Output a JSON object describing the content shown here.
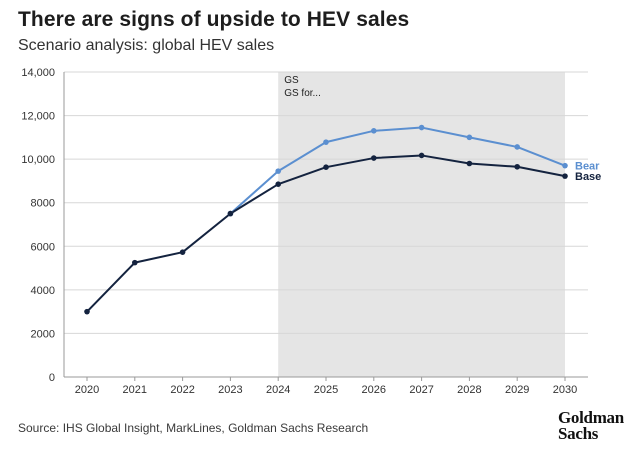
{
  "title": "There are signs of upside to HEV sales",
  "subtitle": "Scenario analysis: global HEV sales",
  "source": "Source: IHS Global Insight, MarkLines, Goldman Sachs Research",
  "logo": {
    "line1": "Goldman",
    "line2": "Sachs"
  },
  "colors": {
    "bear": "#5b8fd0",
    "base": "#14233f",
    "shade": "#e5e5e5",
    "grid": "#d7d7d7",
    "axis": "#999999"
  },
  "chart_data": {
    "type": "line",
    "x": [
      2020,
      2021,
      2022,
      2023,
      2024,
      2025,
      2026,
      2027,
      2028,
      2029,
      2030
    ],
    "ylim": [
      0,
      14000
    ],
    "yticks": [
      0,
      2000,
      4000,
      6000,
      8000,
      10000,
      12000,
      14000
    ],
    "ytick_labels": [
      "0",
      "2000",
      "4000",
      "6000",
      "8000",
      "10,000",
      "12,000",
      "14,000"
    ],
    "grid": true,
    "shaded_region": {
      "from": 2024,
      "to": 2030,
      "label_line1": "GS",
      "label_line2": "GS for..."
    },
    "series": [
      {
        "name": "Bear",
        "color": "#5b8fd0",
        "values": [
          null,
          null,
          null,
          7500,
          9450,
          10780,
          11300,
          11450,
          11000,
          10560,
          9700
        ]
      },
      {
        "name": "Base",
        "color": "#14233f",
        "values": [
          3000,
          5250,
          5730,
          7500,
          8850,
          9630,
          10050,
          10170,
          9800,
          9650,
          9220
        ]
      }
    ]
  }
}
